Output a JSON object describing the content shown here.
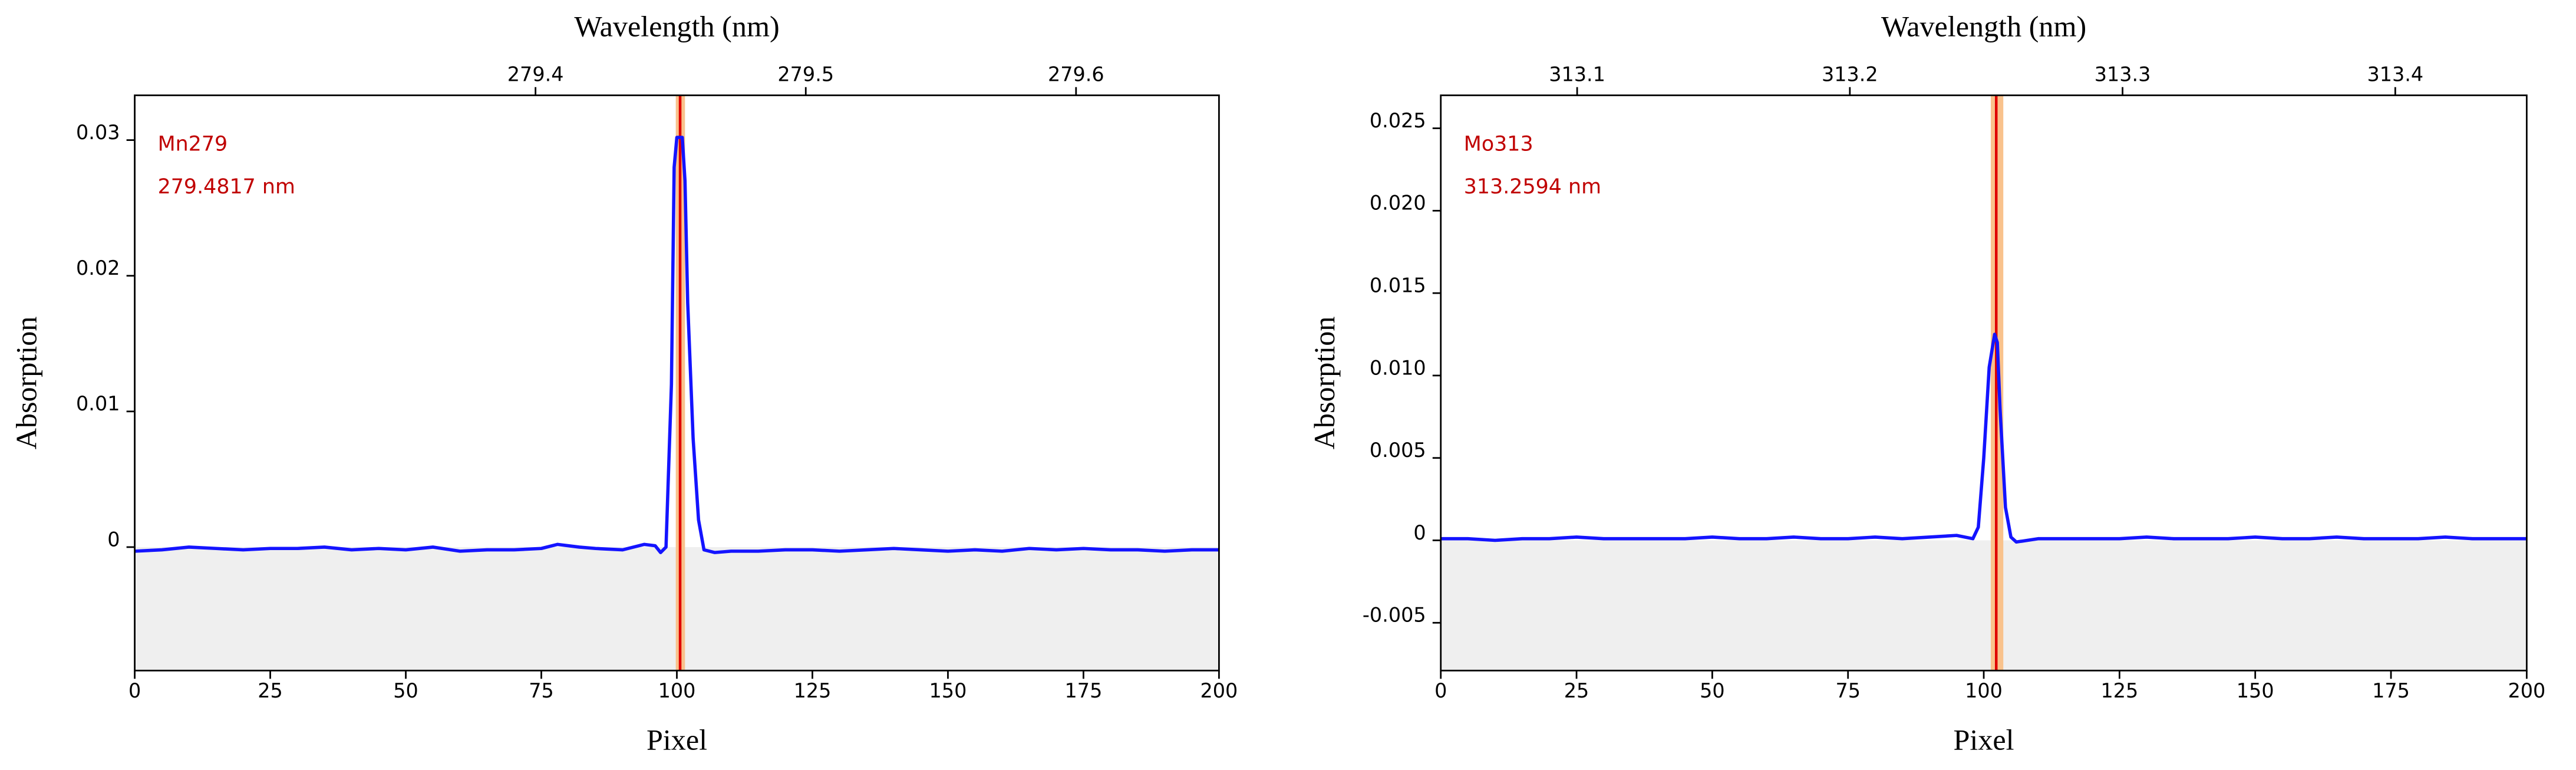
{
  "chart_data": [
    {
      "type": "line",
      "x_label": "Pixel",
      "y_label": "Absorption",
      "x2_label": "Wavelength (nm)",
      "annotations": [
        "Mn279",
        "279.4817 nm"
      ],
      "xlim": [
        0,
        200
      ],
      "xticks": [
        0,
        25,
        50,
        75,
        100,
        125,
        150,
        175,
        200
      ],
      "x2lim": [
        279.2517,
        279.6529
      ],
      "x2ticks": [
        279.4,
        279.5,
        279.6
      ],
      "ylim": [
        -0.0091,
        0.0333
      ],
      "yticks": [
        0,
        0.01,
        0.02,
        0.03
      ],
      "marker": 100.6,
      "band": [
        99.8,
        101.5
      ],
      "marker_color": "#e00000",
      "band_color": "#f9c28c",
      "series": [
        {
          "color": "#1414ff",
          "x": [
            0,
            5,
            10,
            15,
            20,
            25,
            30,
            35,
            40,
            45,
            50,
            55,
            60,
            65,
            70,
            75,
            78,
            82,
            85,
            90,
            94,
            96,
            97,
            98,
            99,
            99.5,
            100,
            101,
            101.5,
            102,
            103,
            104,
            105,
            107,
            110,
            115,
            120,
            125,
            130,
            135,
            140,
            145,
            150,
            155,
            160,
            165,
            170,
            175,
            180,
            185,
            190,
            195,
            200
          ],
          "values": [
            -0.0003,
            -0.0002,
            0.0,
            -0.0001,
            -0.0002,
            -0.0001,
            -0.0001,
            0.0,
            -0.0002,
            -0.0001,
            -0.0002,
            0.0,
            -0.0003,
            -0.0002,
            -0.0002,
            -0.0001,
            0.0002,
            0.0,
            -0.0001,
            -0.0002,
            0.0002,
            0.0001,
            -0.0004,
            0.0,
            0.012,
            0.028,
            0.0302,
            0.0302,
            0.027,
            0.018,
            0.008,
            0.002,
            -0.0002,
            -0.0004,
            -0.0003,
            -0.0003,
            -0.0002,
            -0.0002,
            -0.0003,
            -0.0002,
            -0.0001,
            -0.0002,
            -0.0003,
            -0.0002,
            -0.0003,
            -0.0001,
            -0.0002,
            -0.0001,
            -0.0002,
            -0.0002,
            -0.0003,
            -0.0002,
            -0.0002
          ]
        }
      ]
    },
    {
      "type": "line",
      "x_label": "Pixel",
      "y_label": "Absorption",
      "x2_label": "Wavelength (nm)",
      "annotations": [
        "Mo313",
        "313.2594 nm"
      ],
      "xlim": [
        0,
        200
      ],
      "xticks": [
        0,
        25,
        50,
        75,
        100,
        125,
        150,
        175,
        200
      ],
      "x2lim": [
        313.05,
        313.4482
      ],
      "x2ticks": [
        313.1,
        313.2,
        313.3,
        313.4
      ],
      "ylim": [
        -0.0079,
        0.027
      ],
      "yticks": [
        -0.005,
        0,
        0.005,
        {
          "value": 0.01,
          "label": "0.010"
        },
        0.015,
        {
          "value": 0.02,
          "label": "0.020"
        },
        0.025
      ],
      "marker": 102.3,
      "band": [
        101.3,
        103.6
      ],
      "marker_color": "#e00000",
      "band_color": "#f9c28c",
      "series": [
        {
          "color": "#1414ff",
          "x": [
            0,
            5,
            10,
            15,
            20,
            25,
            30,
            35,
            40,
            45,
            50,
            55,
            60,
            65,
            70,
            75,
            80,
            85,
            90,
            95,
            98,
            99,
            100,
            101,
            102,
            102.5,
            103,
            104,
            105,
            106,
            110,
            115,
            120,
            125,
            130,
            135,
            140,
            145,
            150,
            155,
            160,
            165,
            170,
            175,
            180,
            185,
            190,
            195,
            200
          ],
          "values": [
            0.0001,
            0.0001,
            0.0,
            0.0001,
            0.0001,
            0.0002,
            0.0001,
            0.0001,
            0.0001,
            0.0001,
            0.0002,
            0.0001,
            0.0001,
            0.0002,
            0.0001,
            0.0001,
            0.0002,
            0.0001,
            0.0002,
            0.0003,
            0.0001,
            0.0008,
            0.005,
            0.0105,
            0.0125,
            0.012,
            0.008,
            0.002,
            0.0002,
            -0.0001,
            0.0001,
            0.0001,
            0.0001,
            0.0001,
            0.0002,
            0.0001,
            0.0001,
            0.0001,
            0.0002,
            0.0001,
            0.0001,
            0.0002,
            0.0001,
            0.0001,
            0.0001,
            0.0002,
            0.0001,
            0.0001,
            0.0001
          ]
        }
      ]
    }
  ]
}
